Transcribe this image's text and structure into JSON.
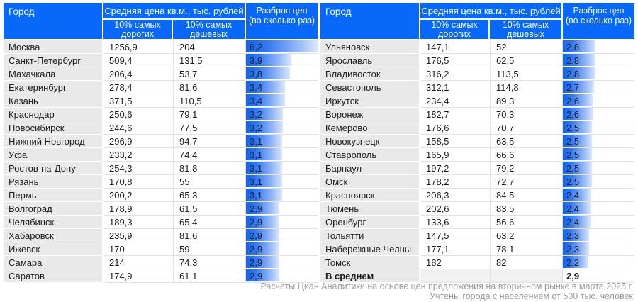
{
  "header": {
    "city": "Город",
    "price_group": "Средняя цена кв.м., тыс. рублей",
    "expensive": "10% самых дорогих",
    "cheap": "10% самых дешевых",
    "spread_line1": "Разброс цен",
    "spread_line2": "(во сколько раз)"
  },
  "colors": {
    "header_bg": "#0868fa",
    "city_cell_bg": "#e9e9e9",
    "bar_gradient_start": "#0f64f0",
    "bar_gradient_end": "#d9e7fd",
    "footer_text": "#9b9b9b"
  },
  "footer": {
    "line1": "Расчеты Циан.Аналитики на основе цен предложения на вторичном рынке в марте 2025 г.",
    "line2": "Учтены города с населением от 500 тыс. человек"
  },
  "chart_data": {
    "type": "table",
    "columns": [
      "Город",
      "10% самых дорогих",
      "10% самых дешевых",
      "Разброс цен (во сколько раз)"
    ],
    "spread_bar_max": 6.2,
    "tables": [
      {
        "rows": [
          {
            "city": "Москва",
            "expensive": "1256,9",
            "cheap": "204",
            "spread": "6,2",
            "spread_value": 6.2
          },
          {
            "city": "Санкт-Петербург",
            "expensive": "509,4",
            "cheap": "131,5",
            "spread": "3,9",
            "spread_value": 3.9
          },
          {
            "city": "Махачкала",
            "expensive": "206,4",
            "cheap": "53,7",
            "spread": "3,8",
            "spread_value": 3.8
          },
          {
            "city": "Екатеринбург",
            "expensive": "278,4",
            "cheap": "81,6",
            "spread": "3,4",
            "spread_value": 3.4
          },
          {
            "city": "Казань",
            "expensive": "371,5",
            "cheap": "110,5",
            "spread": "3,4",
            "spread_value": 3.4
          },
          {
            "city": "Краснодар",
            "expensive": "250,6",
            "cheap": "79,1",
            "spread": "3,2",
            "spread_value": 3.2
          },
          {
            "city": "Новосибирск",
            "expensive": "244,6",
            "cheap": "77,5",
            "spread": "3,2",
            "spread_value": 3.2
          },
          {
            "city": "Нижний Новгород",
            "expensive": "296,9",
            "cheap": "94,7",
            "spread": "3,1",
            "spread_value": 3.1
          },
          {
            "city": "Уфа",
            "expensive": "233,2",
            "cheap": "74,4",
            "spread": "3,1",
            "spread_value": 3.1
          },
          {
            "city": "Ростов-на-Дону",
            "expensive": "254,3",
            "cheap": "81,8",
            "spread": "3,1",
            "spread_value": 3.1
          },
          {
            "city": "Рязань",
            "expensive": "170,8",
            "cheap": "55",
            "spread": "3,1",
            "spread_value": 3.1
          },
          {
            "city": "Пермь",
            "expensive": "200,2",
            "cheap": "65,3",
            "spread": "3,1",
            "spread_value": 3.1
          },
          {
            "city": "Волгоград",
            "expensive": "178,9",
            "cheap": "61,5",
            "spread": "2,9",
            "spread_value": 2.9
          },
          {
            "city": "Челябинск",
            "expensive": "189,3",
            "cheap": "65,4",
            "spread": "2,9",
            "spread_value": 2.9
          },
          {
            "city": "Хабаровск",
            "expensive": "235,9",
            "cheap": "81,6",
            "spread": "2,9",
            "spread_value": 2.9
          },
          {
            "city": "Ижевск",
            "expensive": "170",
            "cheap": "59",
            "spread": "2,9",
            "spread_value": 2.9
          },
          {
            "city": "Самара",
            "expensive": "214",
            "cheap": "74,3",
            "spread": "2,9",
            "spread_value": 2.9
          },
          {
            "city": "Саратов",
            "expensive": "174,9",
            "cheap": "61,1",
            "spread": "2,9",
            "spread_value": 2.9
          }
        ]
      },
      {
        "rows": [
          {
            "city": "Ульяновск",
            "expensive": "147,1",
            "cheap": "52",
            "spread": "2,8",
            "spread_value": 2.8
          },
          {
            "city": "Ярославль",
            "expensive": "176,5",
            "cheap": "62,5",
            "spread": "2,8",
            "spread_value": 2.8
          },
          {
            "city": "Владивосток",
            "expensive": "316,2",
            "cheap": "113,5",
            "spread": "2,8",
            "spread_value": 2.8
          },
          {
            "city": "Севастополь",
            "expensive": "312,1",
            "cheap": "114,8",
            "spread": "2,7",
            "spread_value": 2.7
          },
          {
            "city": "Иркутск",
            "expensive": "234,4",
            "cheap": "89,3",
            "spread": "2,6",
            "spread_value": 2.6
          },
          {
            "city": "Воронеж",
            "expensive": "182,7",
            "cheap": "70,3",
            "spread": "2,6",
            "spread_value": 2.6
          },
          {
            "city": "Кемерово",
            "expensive": "176,6",
            "cheap": "70,7",
            "spread": "2,5",
            "spread_value": 2.5
          },
          {
            "city": "Новокузнецк",
            "expensive": "158,5",
            "cheap": "63,5",
            "spread": "2,5",
            "spread_value": 2.5
          },
          {
            "city": "Ставрополь",
            "expensive": "165,9",
            "cheap": "66,6",
            "spread": "2,5",
            "spread_value": 2.5
          },
          {
            "city": "Барнаул",
            "expensive": "197,2",
            "cheap": "79,2",
            "spread": "2,5",
            "spread_value": 2.5
          },
          {
            "city": "Омск",
            "expensive": "178,2",
            "cheap": "72,7",
            "spread": "2,5",
            "spread_value": 2.5
          },
          {
            "city": "Красноярск",
            "expensive": "206,3",
            "cheap": "84,5",
            "spread": "2,4",
            "spread_value": 2.4
          },
          {
            "city": "Тюмень",
            "expensive": "202,6",
            "cheap": "83,5",
            "spread": "2,4",
            "spread_value": 2.4
          },
          {
            "city": "Оренбург",
            "expensive": "133,6",
            "cheap": "56,6",
            "spread": "2,4",
            "spread_value": 2.4
          },
          {
            "city": "Тольятти",
            "expensive": "147,5",
            "cheap": "63,2",
            "spread": "2,3",
            "spread_value": 2.3
          },
          {
            "city": "Набережные Челны",
            "expensive": "177,1",
            "cheap": "78,1",
            "spread": "2,3",
            "spread_value": 2.3
          },
          {
            "city": "Томск",
            "expensive": "182",
            "cheap": "82",
            "spread": "2,2",
            "spread_value": 2.2
          },
          {
            "city": "В среднем",
            "expensive": "",
            "cheap": "",
            "spread": "2,9",
            "spread_value": null,
            "summary": true
          }
        ]
      }
    ]
  }
}
